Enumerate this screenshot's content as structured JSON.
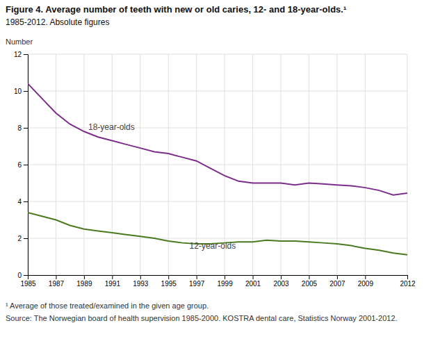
{
  "chart_data": {
    "type": "line",
    "title": "Figure 4. Average number of teeth with new or old caries, 12- and 18-year-olds.¹",
    "subtitle": "1985-2012. Absolute figures",
    "ylabel": "Number",
    "footnotes": [
      "¹ Average of those treated/examined in the given age group.",
      "Source: The Norwegian board of health supervision 1985-2000. KOSTRA dental care, Statistics Norway 2001-2012."
    ],
    "x": [
      1985,
      1986,
      1987,
      1988,
      1989,
      1990,
      1991,
      1992,
      1993,
      1994,
      1995,
      1996,
      1997,
      1998,
      1999,
      2000,
      2001,
      2002,
      2003,
      2004,
      2005,
      2006,
      2007,
      2008,
      2009,
      2010,
      2011,
      2012
    ],
    "series": [
      {
        "color": "#7b2d8b",
        "values": [
          10.4,
          9.6,
          8.8,
          8.2,
          7.8,
          7.5,
          7.3,
          7.1,
          6.9,
          6.7,
          6.6,
          6.4,
          6.2,
          5.8,
          5.4,
          5.1,
          5.0,
          5.0,
          5.0,
          4.9,
          5.0,
          4.95,
          4.9,
          4.85,
          4.75,
          4.6,
          4.35,
          4.45
        ]
      },
      {
        "color": "#4a7a1e",
        "values": [
          3.4,
          3.2,
          3.0,
          2.7,
          2.5,
          2.4,
          2.3,
          2.2,
          2.1,
          2.0,
          1.85,
          1.75,
          1.7,
          1.7,
          1.75,
          1.8,
          1.8,
          1.9,
          1.85,
          1.85,
          1.8,
          1.75,
          1.7,
          1.6,
          1.45,
          1.35,
          1.2,
          1.1
        ]
      }
    ],
    "annotations": [
      {
        "text": "18-year-olds",
        "x": 1989.3,
        "y": 7.9
      },
      {
        "text": "12-year-olds",
        "x": 1996.5,
        "y": 1.45
      }
    ],
    "xlim": [
      1985,
      2012
    ],
    "xticks": [
      1985,
      1987,
      1989,
      1991,
      1993,
      1995,
      1997,
      1999,
      2001,
      2003,
      2005,
      2007,
      2009,
      2012
    ],
    "ylim": [
      0,
      12
    ],
    "yticks": [
      0,
      2,
      4,
      6,
      8,
      10,
      12
    ],
    "grid": true
  }
}
